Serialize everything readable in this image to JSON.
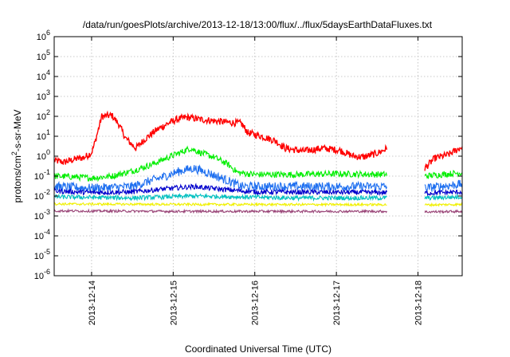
{
  "chart_data": {
    "type": "line",
    "title": "/data/run/goesPlots/archive/2013-12-18/13:00/flux/../flux/5daysEarthDataFluxes.txt",
    "xlabel": "Coordinated Universal Time (UTC)",
    "ylabel": "protons/cm2-s-sr-MeV",
    "ylabel_parts": {
      "base": "protons/cm",
      "sup": "2",
      "rest": "-s-sr-MeV"
    },
    "yscale": "log",
    "ylim": [
      1e-06,
      1000000.0
    ],
    "y_ticks": [
      {
        "base": "10",
        "exp": "-6"
      },
      {
        "base": "10",
        "exp": "-5"
      },
      {
        "base": "10",
        "exp": "-4"
      },
      {
        "base": "10",
        "exp": "-3"
      },
      {
        "base": "10",
        "exp": "-2"
      },
      {
        "base": "10",
        "exp": "-1"
      },
      {
        "base": "10",
        "exp": "0"
      },
      {
        "base": "10",
        "exp": "1"
      },
      {
        "base": "10",
        "exp": "2"
      },
      {
        "base": "10",
        "exp": "3"
      },
      {
        "base": "10",
        "exp": "4"
      },
      {
        "base": "10",
        "exp": "5"
      },
      {
        "base": "10",
        "exp": "6"
      }
    ],
    "xlim": [
      "2013-12-13 13:00",
      "2013-12-18 13:00"
    ],
    "x_ticks": [
      "2013-12-14",
      "2013-12-15",
      "2013-12-16",
      "2013-12-17",
      "2013-12-18"
    ],
    "grid": true,
    "data_gap": [
      "2013-12-17 15:00",
      "2013-12-18 02:00"
    ],
    "series": [
      {
        "color": "#ff0000",
        "points": [
          [
            "2013-12-13 13:00",
            0.6
          ],
          [
            "2013-12-13 16:00",
            0.5
          ],
          [
            "2013-12-13 19:00",
            0.7
          ],
          [
            "2013-12-13 22:00",
            0.9
          ],
          [
            "2013-12-14 00:00",
            1.5
          ],
          [
            "2013-12-14 01:00",
            5
          ],
          [
            "2013-12-14 03:00",
            100
          ],
          [
            "2013-12-14 06:00",
            110
          ],
          [
            "2013-12-14 08:00",
            40
          ],
          [
            "2013-12-14 10:00",
            8
          ],
          [
            "2013-12-14 13:00",
            2.5
          ],
          [
            "2013-12-14 16:00",
            8
          ],
          [
            "2013-12-14 19:00",
            20
          ],
          [
            "2013-12-14 22:00",
            40
          ],
          [
            "2013-12-15 01:00",
            70
          ],
          [
            "2013-12-15 04:00",
            90
          ],
          [
            "2013-12-15 08:00",
            70
          ],
          [
            "2013-12-15 12:00",
            60
          ],
          [
            "2013-12-15 16:00",
            50
          ],
          [
            "2013-12-15 20:00",
            45
          ],
          [
            "2013-12-15 22:00",
            15
          ],
          [
            "2013-12-16 02:00",
            10
          ],
          [
            "2013-12-16 06:00",
            6
          ],
          [
            "2013-12-16 09:00",
            2.5
          ],
          [
            "2013-12-16 14:00",
            1.8
          ],
          [
            "2013-12-16 20:00",
            2.5
          ],
          [
            "2013-12-17 01:00",
            2.0
          ],
          [
            "2013-12-17 05:00",
            1.0
          ],
          [
            "2013-12-17 08:00",
            0.9
          ],
          [
            "2013-12-17 12:00",
            1.4
          ],
          [
            "2013-12-17 15:00",
            2.5
          ],
          [
            "2013-12-18 02:00",
            0.25
          ],
          [
            "2013-12-18 05:00",
            0.8
          ],
          [
            "2013-12-18 09:00",
            1.2
          ],
          [
            "2013-12-18 13:00",
            3
          ]
        ]
      },
      {
        "color": "#00ee00",
        "points": [
          [
            "2013-12-13 13:00",
            0.1
          ],
          [
            "2013-12-13 20:00",
            0.09
          ],
          [
            "2013-12-14 00:00",
            0.08
          ],
          [
            "2013-12-14 06:00",
            0.1
          ],
          [
            "2013-12-14 12:00",
            0.18
          ],
          [
            "2013-12-14 18:00",
            0.4
          ],
          [
            "2013-12-14 22:00",
            0.8
          ],
          [
            "2013-12-15 02:00",
            1.5
          ],
          [
            "2013-12-15 05:00",
            2.5
          ],
          [
            "2013-12-15 08:00",
            1.5
          ],
          [
            "2013-12-15 12:00",
            0.9
          ],
          [
            "2013-12-15 16:00",
            0.4
          ],
          [
            "2013-12-15 19:00",
            0.15
          ],
          [
            "2013-12-16 00:00",
            0.12
          ],
          [
            "2013-12-16 12:00",
            0.12
          ],
          [
            "2013-12-17 00:00",
            0.13
          ],
          [
            "2013-12-17 15:00",
            0.12
          ],
          [
            "2013-12-18 02:00",
            0.1
          ],
          [
            "2013-12-18 13:00",
            0.15
          ]
        ]
      },
      {
        "color": "#1e6ff0",
        "points": [
          [
            "2013-12-13 13:00",
            0.03
          ],
          [
            "2013-12-14 00:00",
            0.025
          ],
          [
            "2013-12-14 12:00",
            0.03
          ],
          [
            "2013-12-14 20:00",
            0.08
          ],
          [
            "2013-12-15 02:00",
            0.18
          ],
          [
            "2013-12-15 06:00",
            0.25
          ],
          [
            "2013-12-15 10:00",
            0.15
          ],
          [
            "2013-12-15 16:00",
            0.06
          ],
          [
            "2013-12-15 20:00",
            0.03
          ],
          [
            "2013-12-16 12:00",
            0.03
          ],
          [
            "2013-12-17 15:00",
            0.03
          ],
          [
            "2013-12-18 02:00",
            0.025
          ],
          [
            "2013-12-18 13:00",
            0.04
          ]
        ]
      },
      {
        "color": "#0000cc",
        "points": [
          [
            "2013-12-13 13:00",
            0.018
          ],
          [
            "2013-12-14 00:00",
            0.015
          ],
          [
            "2013-12-14 12:00",
            0.016
          ],
          [
            "2013-12-15 00:00",
            0.025
          ],
          [
            "2013-12-15 06:00",
            0.03
          ],
          [
            "2013-12-15 14:00",
            0.022
          ],
          [
            "2013-12-16 00:00",
            0.016
          ],
          [
            "2013-12-17 15:00",
            0.015
          ],
          [
            "2013-12-18 02:00",
            0.014
          ],
          [
            "2013-12-18 13:00",
            0.016
          ]
        ]
      },
      {
        "color": "#00c0c0",
        "points": [
          [
            "2013-12-13 13:00",
            0.009
          ],
          [
            "2013-12-14 12:00",
            0.008
          ],
          [
            "2013-12-15 06:00",
            0.01
          ],
          [
            "2013-12-16 12:00",
            0.008
          ],
          [
            "2013-12-17 15:00",
            0.008
          ],
          [
            "2013-12-18 02:00",
            0.008
          ],
          [
            "2013-12-18 13:00",
            0.009
          ]
        ]
      },
      {
        "color": "#f0f000",
        "points": [
          [
            "2013-12-13 13:00",
            0.004
          ],
          [
            "2013-12-15 00:00",
            0.0038
          ],
          [
            "2013-12-17 15:00",
            0.0037
          ],
          [
            "2013-12-18 02:00",
            0.0036
          ],
          [
            "2013-12-18 13:00",
            0.0038
          ]
        ]
      },
      {
        "color": "#994477",
        "points": [
          [
            "2013-12-13 13:00",
            0.0018
          ],
          [
            "2013-12-15 00:00",
            0.0017
          ],
          [
            "2013-12-17 15:00",
            0.0017
          ],
          [
            "2013-12-18 02:00",
            0.0016
          ],
          [
            "2013-12-18 13:00",
            0.0017
          ]
        ]
      }
    ]
  }
}
